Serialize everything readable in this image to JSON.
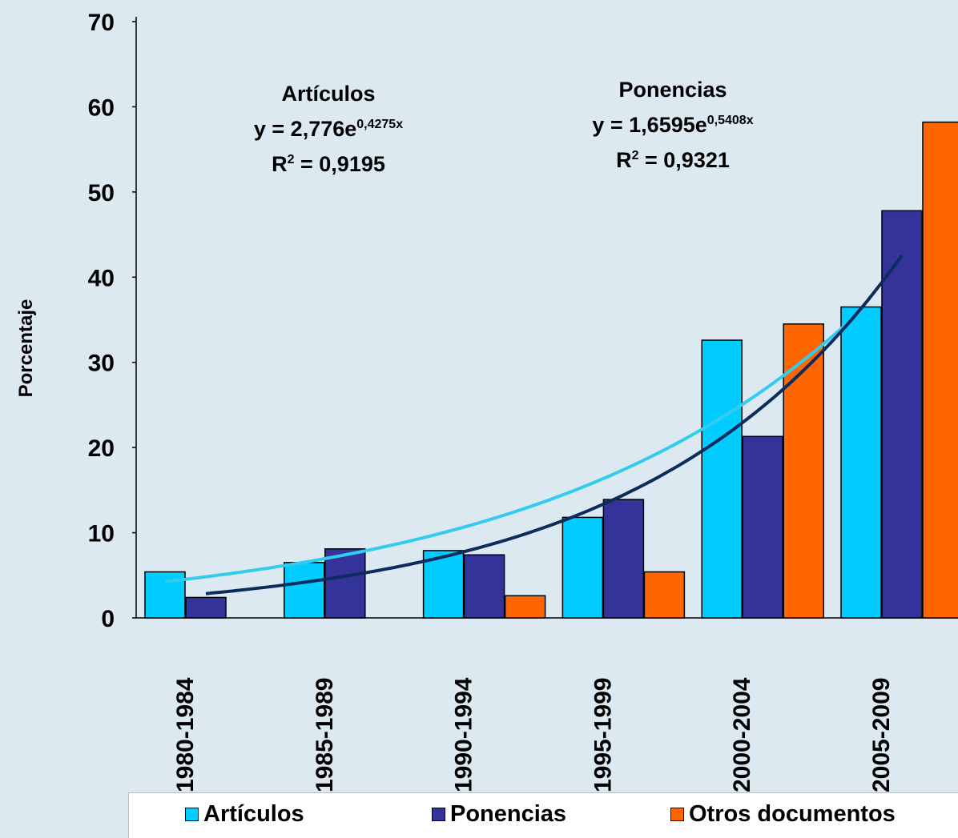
{
  "chart_data": {
    "type": "bar",
    "ylabel": "Porcentaje",
    "xlabel": "",
    "ylim": [
      0,
      70
    ],
    "yticks": [
      "0",
      "10",
      "20",
      "30",
      "40",
      "50",
      "60",
      "70"
    ],
    "categories": [
      "1980-1984",
      "1985-1989",
      "1990-1994",
      "1995-1999",
      "2000-2004",
      "2005-2009"
    ],
    "series": [
      {
        "name": "Artículos",
        "color": "#00ccff",
        "values": [
          5.4,
          6.5,
          7.9,
          11.8,
          32.6,
          36.5
        ]
      },
      {
        "name": "Ponencias",
        "color": "#333399",
        "values": [
          2.4,
          8.1,
          7.4,
          13.9,
          21.3,
          47.8
        ]
      },
      {
        "name": "Otros documentos",
        "color": "#ff6600",
        "values": [
          0,
          0,
          2.6,
          5.4,
          34.5,
          58.2
        ]
      }
    ],
    "trendlines": [
      {
        "series": "Artículos",
        "type": "exponential",
        "a": 2.776,
        "b": 0.4275,
        "color": "#33ccee"
      },
      {
        "series": "Ponencias",
        "type": "exponential",
        "a": 1.6595,
        "b": 0.5408,
        "color": "#0d2c5e"
      }
    ],
    "annotations": {
      "articulos": {
        "title": "Artículos",
        "eq_prefix": "y = 2,776e",
        "eq_exp": "0,4275x",
        "r2_prefix": "R",
        "r2_sup": "2",
        "r2_value": " = 0,9195"
      },
      "ponencias": {
        "title": "Ponencias",
        "eq_prefix": "y = 1,6595e",
        "eq_exp": "0,5408x",
        "r2_prefix": "R",
        "r2_sup": "2",
        "r2_value": " = 0,9321"
      }
    },
    "legend": {
      "position": "bottom"
    },
    "grid": false
  }
}
